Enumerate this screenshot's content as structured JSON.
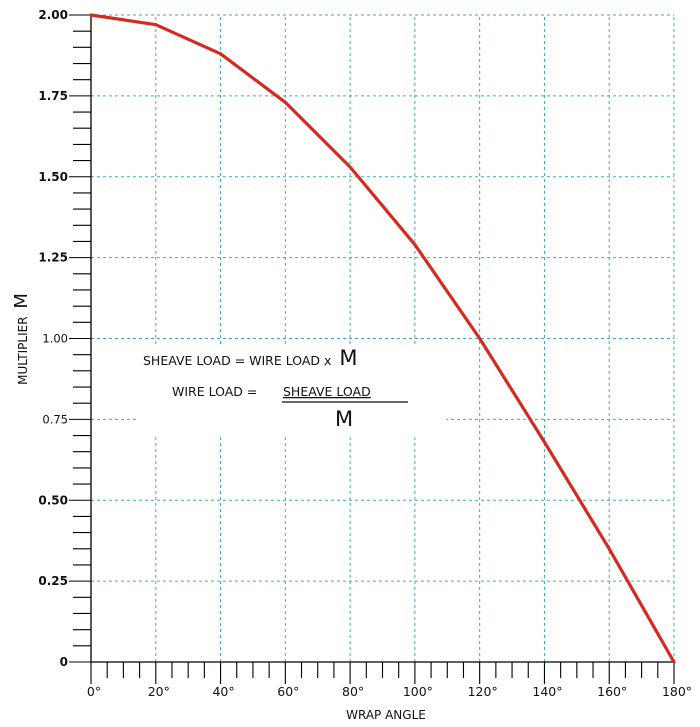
{
  "chart_data": {
    "type": "line",
    "title": "",
    "xlabel": "WRAP ANGLE",
    "ylabel": "MULTIPLIER",
    "ylabel_symbol": "M",
    "xlim": [
      0,
      180
    ],
    "ylim": [
      0,
      2
    ],
    "grid": true,
    "x_tick_labels": [
      "0°",
      "20°",
      "40°",
      "60°",
      "80°",
      "100°",
      "120°",
      "140°",
      "160°",
      "180°"
    ],
    "y_tick_labels": [
      "0",
      "0.25",
      "0.50",
      "0.75",
      "1.00",
      "1.25",
      "1.50",
      "1.75",
      "2.00"
    ],
    "series": [
      {
        "color": "#d42a20",
        "x": [
          0,
          20,
          40,
          60,
          80,
          100,
          120,
          140,
          160,
          180
        ],
        "y": [
          2.0,
          1.97,
          1.88,
          1.73,
          1.53,
          1.29,
          1.0,
          0.68,
          0.35,
          0.0
        ]
      }
    ],
    "annotation": {
      "line1_text": "SHEAVE LOAD = WIRE LOAD x",
      "line1_symbol": "M",
      "line2_prefix": "WIRE LOAD =",
      "line2_numerator": "SHEAVE LOAD",
      "line2_denominator": "M"
    }
  }
}
